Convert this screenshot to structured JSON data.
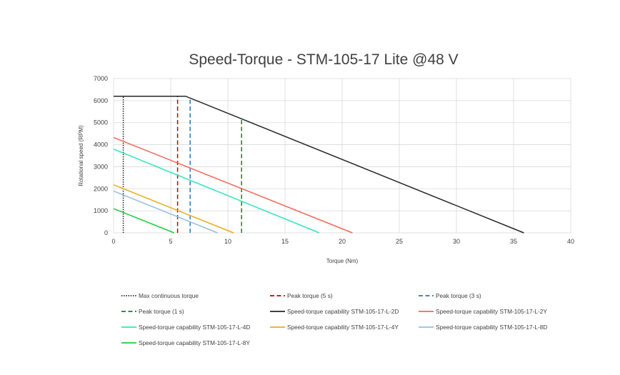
{
  "chart_data": {
    "type": "line",
    "title": "Speed-Torque - STM-105-17 Lite @48 V",
    "xlabel": "Torque (Nm)",
    "ylabel": "Rotational speed (RPM)",
    "xlim": [
      0,
      40
    ],
    "ylim": [
      0,
      7000
    ],
    "x_ticks": [
      0,
      5,
      10,
      15,
      20,
      25,
      30,
      35,
      40
    ],
    "y_ticks": [
      0,
      1000,
      2000,
      3000,
      4000,
      5000,
      6000,
      7000
    ],
    "grid": true,
    "legend_position": "bottom",
    "series": [
      {
        "name": "Max continuous torque",
        "style": "dotted",
        "color": "#1a1a1a",
        "points": [
          [
            0.85,
            0
          ],
          [
            0.85,
            6200
          ]
        ]
      },
      {
        "name": "Peak torque (5 s)",
        "style": "dashed",
        "color": "#c00000",
        "points": [
          [
            5.6,
            0
          ],
          [
            5.6,
            6200
          ]
        ]
      },
      {
        "name": "Peak torque (3 s)",
        "style": "dashed",
        "color": "#2e75b6",
        "points": [
          [
            6.7,
            0
          ],
          [
            6.7,
            6150
          ]
        ]
      },
      {
        "name": "Peak torque (1 s)",
        "style": "dashed",
        "color": "#217a2a",
        "points": [
          [
            11.2,
            0
          ],
          [
            11.2,
            5200
          ]
        ]
      },
      {
        "name": "Speed-torque capability STM-105-17-L-2D",
        "style": "solid",
        "color": "#262626",
        "points": [
          [
            0,
            6200
          ],
          [
            6.3,
            6200
          ],
          [
            35.9,
            0
          ]
        ]
      },
      {
        "name": "Speed-torque capability STM-105-17-L-2Y",
        "style": "solid",
        "color": "#f4665a",
        "points": [
          [
            0,
            4330
          ],
          [
            20.9,
            0
          ]
        ]
      },
      {
        "name": "Speed-torque capability STM-105-17-L-4D",
        "style": "solid",
        "color": "#2ee6bf",
        "points": [
          [
            0,
            3800
          ],
          [
            18.0,
            0
          ]
        ]
      },
      {
        "name": "Speed-torque capability STM-105-17-L-4Y",
        "style": "solid",
        "color": "#f0a91c",
        "points": [
          [
            0,
            2180
          ],
          [
            10.5,
            0
          ]
        ]
      },
      {
        "name": "Speed-torque capability STM-105-17-L-8D",
        "style": "solid",
        "color": "#95bfe3",
        "points": [
          [
            0,
            1900
          ],
          [
            9.1,
            0
          ]
        ]
      },
      {
        "name": "Speed-torque capability STM-105-17-L-8Y",
        "style": "solid",
        "color": "#1fcc44",
        "points": [
          [
            0,
            1100
          ],
          [
            5.3,
            0
          ]
        ]
      }
    ]
  },
  "legend_order": [
    "Max continuous torque",
    "Peak torque (5 s)",
    "Peak torque (3 s)",
    "Peak torque (1 s)",
    "Speed-torque capability STM-105-17-L-2D",
    "Speed-torque capability STM-105-17-L-2Y",
    "Speed-torque capability STM-105-17-L-4D",
    "Speed-torque capability STM-105-17-L-4Y",
    "Speed-torque capability STM-105-17-L-8D",
    "Speed-torque capability STM-105-17-L-8Y"
  ],
  "colors": {
    "grid": "#d9d9d9",
    "text": "#404040",
    "background": "#ffffff"
  }
}
